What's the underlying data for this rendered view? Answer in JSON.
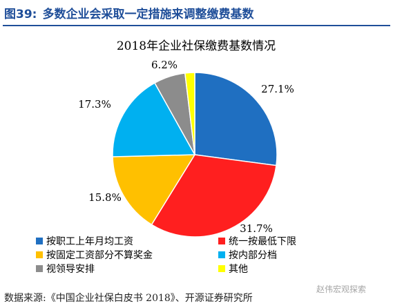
{
  "figure": {
    "label": "图39:",
    "title": "多数企业会采取一定措施来调整缴费基数",
    "source": "数据来源:《中国企业社保白皮书 2018》、开源证券研究所",
    "watermark": "赵伟宏观探索"
  },
  "colors": {
    "title_blue": "#1f4e99"
  },
  "chart_data": {
    "type": "pie",
    "title": "2018年企业社保缴费基数情况",
    "start": "12 o'clock",
    "direction": "clockwise",
    "legend_position": "bottom",
    "slices": [
      {
        "name": "按职工上年月均工资",
        "value": 27.1,
        "label": "27.1%",
        "color": "#1f6fc1"
      },
      {
        "name": "统一按最低下限",
        "value": 31.7,
        "label": "31.7%",
        "color": "#ff1f1f"
      },
      {
        "name": "按固定工资部分不算奖金",
        "value": 15.8,
        "label": "15.8%",
        "color": "#ffc000"
      },
      {
        "name": "按内部分档",
        "value": 17.3,
        "label": "17.3%",
        "color": "#00b0f0"
      },
      {
        "name": "视领导安排",
        "value": 6.2,
        "label": "6.2%",
        "color": "#8c8c8c"
      },
      {
        "name": "其他",
        "value": 1.9,
        "label": "",
        "color": "#ffff00"
      }
    ]
  }
}
